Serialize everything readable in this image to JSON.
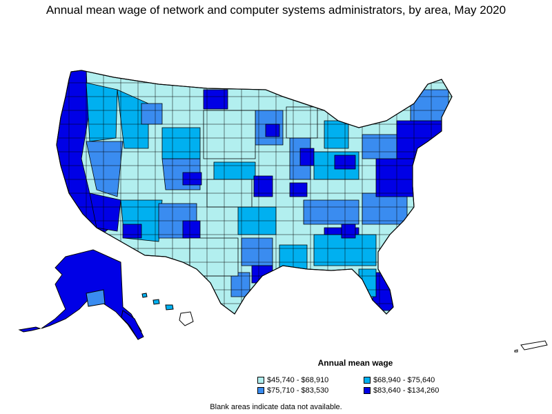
{
  "title": "Annual mean wage of network and computer systems administrators, by area, May 2020",
  "legend": {
    "title": "Annual mean wage",
    "items": [
      {
        "label": "$45,740 - $68,910",
        "color": "#b2efef"
      },
      {
        "label": "$75,710 - $83,530",
        "color": "#3a8cf0"
      },
      {
        "label": "$68,940 - $75,640",
        "color": "#00b0f0"
      },
      {
        "label": "$83,640 - $134,260",
        "color": "#0000e6"
      }
    ]
  },
  "note": "Blank areas indicate data not available.",
  "colors": {
    "tier1": "#b2efef",
    "tier2": "#00b0f0",
    "tier3": "#3a8cf0",
    "tier4": "#0000e6",
    "border": "#000000",
    "background": "#ffffff"
  }
}
